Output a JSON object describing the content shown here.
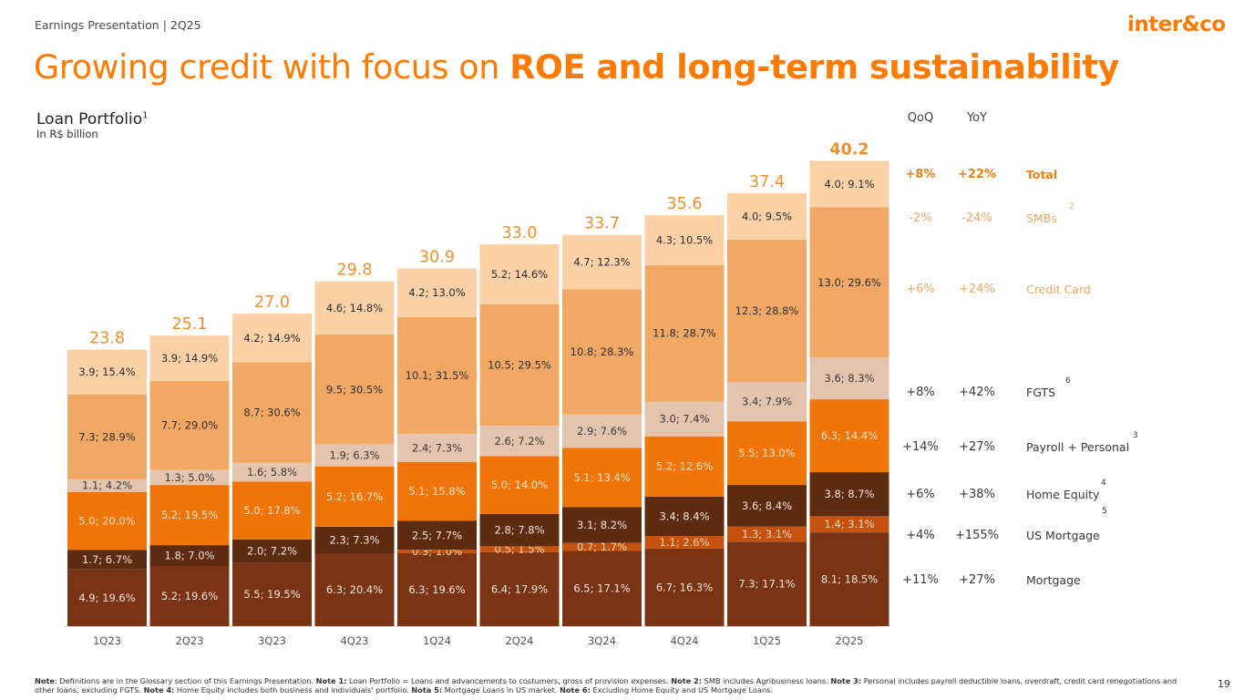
{
  "header": {
    "subtitle": "Earnings Presentation | 2Q25",
    "logo": "inter&co"
  },
  "title": {
    "regular": "Growing credit with focus on ",
    "bold": "ROE and long-term sustainability"
  },
  "portfolio": {
    "title": "Loan Portfolio",
    "title_sup": "1",
    "unit": "In R$ billion"
  },
  "table": {
    "qoq_header": "QoQ",
    "yoy_header": "YoY",
    "rows": [
      {
        "qoq": "+8%",
        "yoy": "+22%",
        "label": "Total",
        "sup": ""
      },
      {
        "qoq": "-2%",
        "yoy": "-24%",
        "label": "SMBs",
        "sup": "2"
      },
      {
        "qoq": "+6%",
        "yoy": "+24%",
        "label": "Credit Card",
        "sup": ""
      },
      {
        "qoq": "+8%",
        "yoy": "+42%",
        "label": "FGTS",
        "sup": "6"
      },
      {
        "qoq": "+14%",
        "yoy": "+27%",
        "label": "Payroll + Personal",
        "sup": "3"
      },
      {
        "qoq": "+6%",
        "yoy": "+38%",
        "label": "Home Equity",
        "sup": "4"
      },
      {
        "qoq": "+4%",
        "yoy": "+155%",
        "label": "US Mortgage",
        "sup": "5"
      },
      {
        "qoq": "+11%",
        "yoy": "+27%",
        "label": "Mortgage",
        "sup": ""
      }
    ]
  },
  "chart_data": {
    "type": "bar",
    "stacked": true,
    "categories": [
      "1Q23",
      "2Q23",
      "3Q23",
      "4Q23",
      "1Q24",
      "2Q24",
      "3Q24",
      "4Q24",
      "1Q25",
      "2Q25"
    ],
    "totals": [
      "23.8",
      "25.1",
      "27.0",
      "29.8",
      "30.9",
      "33.0",
      "33.7",
      "35.6",
      "37.4",
      "40.2"
    ],
    "series": [
      {
        "name": "Mortgage",
        "color": "#7a3414",
        "text_color": "#f3e6dc",
        "values": [
          4.9,
          5.2,
          5.5,
          6.3,
          6.3,
          6.4,
          6.5,
          6.7,
          7.3,
          8.1
        ],
        "labels": [
          "4.9; 19.6%",
          "5.2; 19.6%",
          "5.5; 19.5%",
          "6.3; 20.4%",
          "6.3; 19.6%",
          "6.4; 17.9%",
          "6.5; 17.1%",
          "6.7; 16.3%",
          "7.3; 17.1%",
          "8.1; 18.5%"
        ]
      },
      {
        "name": "US Mortgage",
        "color": "#c5520f",
        "text_color": "#fbd9bd",
        "values": [
          0,
          0,
          0,
          0,
          0.3,
          0.5,
          0.7,
          1.1,
          1.3,
          1.4
        ],
        "labels": [
          "",
          "",
          "",
          "",
          "0.3; 1.0%",
          "0.5; 1.5%",
          "0.7; 1.7%",
          "1.1; 2.6%",
          "1.3; 3.1%",
          "1.4; 3.1%"
        ]
      },
      {
        "name": "Home Equity",
        "color": "#5c2b10",
        "text_color": "#f3e6dc",
        "values": [
          1.7,
          1.8,
          2.0,
          2.3,
          2.5,
          2.8,
          3.1,
          3.4,
          3.6,
          3.8
        ],
        "labels": [
          "1.7; 6.7%",
          "1.8; 7.0%",
          "2.0; 7.2%",
          "2.3; 7.3%",
          "2.5; 7.7%",
          "2.8; 7.8%",
          "3.1; 8.2%",
          "3.4; 8.4%",
          "3.6; 8.4%",
          "3.8; 8.7%"
        ]
      },
      {
        "name": "Payroll + Personal",
        "color": "#ef7409",
        "text_color": "#fde4cc",
        "values": [
          5.0,
          5.2,
          5.0,
          5.2,
          5.1,
          5.0,
          5.1,
          5.2,
          5.5,
          6.3
        ],
        "labels": [
          "5.0; 20.0%",
          "5.2; 19.5%",
          "5.0; 17.8%",
          "5.2; 16.7%",
          "5.1; 15.8%",
          "5.0; 14.0%",
          "5.1; 13.4%",
          "5.2; 12.6%",
          "5.5; 13.0%",
          "6.3; 14.4%"
        ]
      },
      {
        "name": "FGTS",
        "color": "#e5c4ae",
        "text_color": "#3a3a3a",
        "values": [
          1.1,
          1.3,
          1.6,
          1.9,
          2.4,
          2.6,
          2.9,
          3.0,
          3.4,
          3.6
        ],
        "labels": [
          "1.1; 4.2%",
          "1.3; 5.0%",
          "1.6; 5.8%",
          "1.9; 6.3%",
          "2.4; 7.3%",
          "2.6; 7.2%",
          "2.9; 7.6%",
          "3.0; 7.4%",
          "3.4; 7.9%",
          "3.6; 8.3%"
        ]
      },
      {
        "name": "Credit Card",
        "color": "#f2a865",
        "text_color": "#2e2e2e",
        "values": [
          7.3,
          7.7,
          8.7,
          9.5,
          10.1,
          10.5,
          10.8,
          11.8,
          12.3,
          13.0
        ],
        "labels": [
          "7.3; 28.9%",
          "7.7; 29.0%",
          "8.7; 30.6%",
          "9.5; 30.5%",
          "10.1; 31.5%",
          "10.5; 29.5%",
          "10.8; 28.3%",
          "11.8; 28.7%",
          "12.3; 28.8%",
          "13.0; 29.6%"
        ]
      },
      {
        "name": "SMBs",
        "color": "#fbd1a5",
        "text_color": "#2e2e2e",
        "values": [
          3.9,
          3.9,
          4.2,
          4.6,
          4.2,
          5.2,
          4.7,
          4.3,
          4.0,
          4.0
        ],
        "labels": [
          "3.9; 15.4%",
          "3.9; 14.9%",
          "4.2; 14.9%",
          "4.6; 14.8%",
          "4.2; 13.0%",
          "5.2; 14.6%",
          "4.7; 12.3%",
          "4.3; 10.5%",
          "4.0; 9.5%",
          "4.0; 9.1%"
        ]
      }
    ],
    "total_color": "#f0902a",
    "grid": false
  },
  "footnote": [
    {
      "b": "Note",
      "t": ": Definitions are in the Glossary section of this Earnings Presentation. "
    },
    {
      "b": "Note 1:",
      "t": " Loan Portfolio = Loans and advancements to costumers, gross of provision expenses. "
    },
    {
      "b": "Note 2:",
      "t": " SMB includes Agribusiness loans. "
    },
    {
      "b": "Note 3:",
      "t": " Personal includes payroll deductible loans, overdraft, credit card renegotiations and other loans, excluding FGTS. "
    },
    {
      "b": "Note 4:",
      "t": " Home Equity includes both business and individuals' portfolio. "
    },
    {
      "b": "Nota 5:",
      "t": " Mortgage Loans in US market. "
    },
    {
      "b": "Note 6:",
      "t": " Excluding Home Equity and US Mortgage Loans."
    }
  ],
  "page_number": "19"
}
